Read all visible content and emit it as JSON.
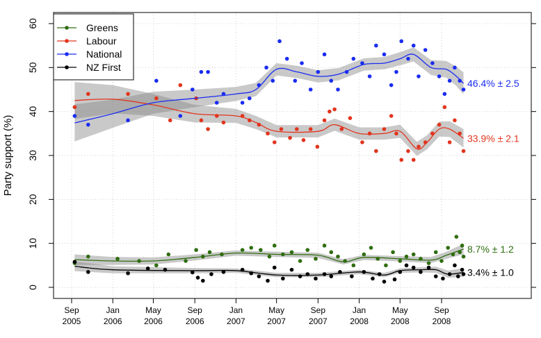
{
  "chart_data": {
    "type": "scatter",
    "title": "",
    "xlabel": "",
    "ylabel": "Party support (%)",
    "ylim": [
      0,
      60
    ],
    "yticks": [
      "0",
      "10",
      "20",
      "30",
      "40",
      "50",
      "60"
    ],
    "xticks": [
      {
        "date": "2005-09-01",
        "month": "Sep",
        "year": "2005"
      },
      {
        "date": "2006-01-01",
        "month": "Jan",
        "year": "2006"
      },
      {
        "date": "2006-05-01",
        "month": "May",
        "year": "2006"
      },
      {
        "date": "2006-09-01",
        "month": "Sep",
        "year": "2006"
      },
      {
        "date": "2007-01-01",
        "month": "Jan",
        "year": "2007"
      },
      {
        "date": "2007-05-01",
        "month": "May",
        "year": "2007"
      },
      {
        "date": "2007-09-01",
        "month": "Sep",
        "year": "2007"
      },
      {
        "date": "2008-01-01",
        "month": "Jan",
        "year": "2008"
      },
      {
        "date": "2008-05-01",
        "month": "May",
        "year": "2008"
      },
      {
        "date": "2008-09-01",
        "month": "Sep",
        "year": "2008"
      }
    ],
    "grid": true,
    "legend_position": "top-left",
    "series": [
      {
        "name": "Greens",
        "color": "#2f6d10",
        "end_label": "8.7% ± 1.2",
        "trend": [
          [
            "2005-09-10",
            6.3,
            1.2
          ],
          [
            "2006-01-01",
            6.0,
            0.9
          ],
          [
            "2006-05-01",
            6.0,
            0.8
          ],
          [
            "2006-09-01",
            6.8,
            0.7
          ],
          [
            "2007-01-01",
            7.8,
            0.6
          ],
          [
            "2007-05-01",
            7.5,
            0.6
          ],
          [
            "2007-09-01",
            7.3,
            0.6
          ],
          [
            "2007-11-15",
            5.8,
            0.6
          ],
          [
            "2008-01-15",
            6.8,
            0.6
          ],
          [
            "2008-05-01",
            6.5,
            0.6
          ],
          [
            "2008-08-01",
            6.2,
            0.7
          ],
          [
            "2008-09-15",
            7.3,
            0.8
          ],
          [
            "2008-11-05",
            8.7,
            1.2
          ]
        ],
        "points": [
          [
            "2005-09-10",
            5.5
          ],
          [
            "2005-10-20",
            7
          ],
          [
            "2006-01-15",
            6.5
          ],
          [
            "2006-03-20",
            6
          ],
          [
            "2006-05-10",
            5
          ],
          [
            "2006-06-15",
            7.5
          ],
          [
            "2006-08-05",
            6
          ],
          [
            "2006-09-05",
            8.5
          ],
          [
            "2006-09-25",
            7
          ],
          [
            "2006-10-15",
            8
          ],
          [
            "2006-11-20",
            7.5
          ],
          [
            "2007-01-20",
            8.5
          ],
          [
            "2007-02-15",
            9
          ],
          [
            "2007-03-15",
            8.5
          ],
          [
            "2007-04-10",
            7
          ],
          [
            "2007-04-25",
            9.5
          ],
          [
            "2007-05-20",
            7.5
          ],
          [
            "2007-06-15",
            8
          ],
          [
            "2007-07-10",
            6
          ],
          [
            "2007-08-01",
            8.5
          ],
          [
            "2007-08-25",
            6.5
          ],
          [
            "2007-09-20",
            9.5
          ],
          [
            "2007-10-10",
            8
          ],
          [
            "2007-10-30",
            7
          ],
          [
            "2007-11-20",
            6
          ],
          [
            "2007-12-15",
            5
          ],
          [
            "2008-01-15",
            7.5
          ],
          [
            "2008-02-05",
            9
          ],
          [
            "2008-02-25",
            6.5
          ],
          [
            "2008-03-20",
            5
          ],
          [
            "2008-04-10",
            8
          ],
          [
            "2008-05-01",
            6
          ],
          [
            "2008-05-20",
            7
          ],
          [
            "2008-06-10",
            7.5
          ],
          [
            "2008-07-01",
            6.5
          ],
          [
            "2008-07-25",
            5.5
          ],
          [
            "2008-08-15",
            8
          ],
          [
            "2008-09-01",
            6
          ],
          [
            "2008-09-20",
            9
          ],
          [
            "2008-10-05",
            7.5
          ],
          [
            "2008-10-15",
            11.5
          ],
          [
            "2008-10-25",
            8
          ],
          [
            "2008-11-01",
            9.5
          ],
          [
            "2008-11-05",
            7
          ]
        ]
      },
      {
        "name": "Labour",
        "color": "#e2341d",
        "end_label": "33.9% ± 2.1",
        "trend": [
          [
            "2005-09-10",
            42.5,
            4.2
          ],
          [
            "2006-01-01",
            42.8,
            3.2
          ],
          [
            "2006-05-01",
            41.5,
            2.5
          ],
          [
            "2006-09-01",
            39.5,
            2.0
          ],
          [
            "2007-01-01",
            39.0,
            1.6
          ],
          [
            "2007-03-01",
            37.5,
            1.5
          ],
          [
            "2007-05-01",
            35.5,
            1.4
          ],
          [
            "2007-09-01",
            35.5,
            1.4
          ],
          [
            "2007-10-20",
            37.0,
            1.4
          ],
          [
            "2008-01-01",
            35.0,
            1.4
          ],
          [
            "2008-03-15",
            35.0,
            1.4
          ],
          [
            "2008-05-01",
            35.5,
            1.5
          ],
          [
            "2008-06-20",
            31.5,
            1.6
          ],
          [
            "2008-07-20",
            33.0,
            1.6
          ],
          [
            "2008-08-25",
            36.0,
            1.7
          ],
          [
            "2008-09-25",
            36.0,
            1.8
          ],
          [
            "2008-11-05",
            33.9,
            2.1
          ]
        ],
        "points": [
          [
            "2005-09-10",
            41
          ],
          [
            "2005-10-20",
            44
          ],
          [
            "2006-02-15",
            44
          ],
          [
            "2006-05-10",
            43
          ],
          [
            "2006-06-20",
            38
          ],
          [
            "2006-07-20",
            46
          ],
          [
            "2006-09-05",
            43
          ],
          [
            "2006-09-20",
            38
          ],
          [
            "2006-10-10",
            36
          ],
          [
            "2006-11-05",
            39
          ],
          [
            "2006-11-25",
            37.5
          ],
          [
            "2007-01-20",
            39
          ],
          [
            "2007-02-10",
            38
          ],
          [
            "2007-03-10",
            37
          ],
          [
            "2007-04-05",
            35
          ],
          [
            "2007-04-25",
            33
          ],
          [
            "2007-05-15",
            36
          ],
          [
            "2007-06-10",
            34
          ],
          [
            "2007-06-30",
            36
          ],
          [
            "2007-07-20",
            33.5
          ],
          [
            "2007-08-10",
            36
          ],
          [
            "2007-08-30",
            32
          ],
          [
            "2007-09-20",
            38
          ],
          [
            "2007-10-05",
            40
          ],
          [
            "2007-10-20",
            40.5
          ],
          [
            "2007-11-10",
            36
          ],
          [
            "2007-12-05",
            38.5
          ],
          [
            "2008-01-10",
            33
          ],
          [
            "2008-02-01",
            35
          ],
          [
            "2008-02-20",
            31
          ],
          [
            "2008-03-15",
            36
          ],
          [
            "2008-04-05",
            39
          ],
          [
            "2008-04-20",
            35
          ],
          [
            "2008-05-05",
            29
          ],
          [
            "2008-05-25",
            31
          ],
          [
            "2008-06-10",
            29
          ],
          [
            "2008-06-25",
            32
          ],
          [
            "2008-07-15",
            33
          ],
          [
            "2008-08-05",
            35
          ],
          [
            "2008-08-25",
            37
          ],
          [
            "2008-09-10",
            41
          ],
          [
            "2008-09-25",
            33
          ],
          [
            "2008-10-10",
            38
          ],
          [
            "2008-10-25",
            35
          ],
          [
            "2008-11-05",
            31
          ]
        ]
      },
      {
        "name": "National",
        "color": "#1a2cf2",
        "end_label": "46.4% ± 2.5",
        "trend": [
          [
            "2005-09-10",
            37.4,
            4.2
          ],
          [
            "2006-01-01",
            39.5,
            3.2
          ],
          [
            "2006-05-01",
            42.0,
            2.5
          ],
          [
            "2006-09-01",
            43.0,
            2.0
          ],
          [
            "2007-01-01",
            44.0,
            1.6
          ],
          [
            "2007-03-01",
            45.0,
            1.5
          ],
          [
            "2007-05-01",
            49.6,
            1.4
          ],
          [
            "2007-07-01",
            49.0,
            1.4
          ],
          [
            "2007-09-01",
            48.0,
            1.4
          ],
          [
            "2007-11-01",
            48.5,
            1.4
          ],
          [
            "2008-01-15",
            50.7,
            1.4
          ],
          [
            "2008-03-15",
            51.0,
            1.4
          ],
          [
            "2008-05-01",
            52.0,
            1.5
          ],
          [
            "2008-06-10",
            53.0,
            1.6
          ],
          [
            "2008-08-01",
            50.0,
            1.7
          ],
          [
            "2008-09-15",
            49.6,
            1.9
          ],
          [
            "2008-10-15",
            48.0,
            2.2
          ],
          [
            "2008-11-05",
            46.4,
            2.5
          ]
        ],
        "points": [
          [
            "2005-09-10",
            39
          ],
          [
            "2005-10-20",
            37
          ],
          [
            "2006-02-15",
            38
          ],
          [
            "2006-05-10",
            47
          ],
          [
            "2006-07-20",
            39
          ],
          [
            "2006-08-25",
            45
          ],
          [
            "2006-09-20",
            49
          ],
          [
            "2006-10-10",
            49
          ],
          [
            "2006-11-05",
            42
          ],
          [
            "2006-11-25",
            44
          ],
          [
            "2007-01-20",
            42
          ],
          [
            "2007-02-10",
            43
          ],
          [
            "2007-03-10",
            46
          ],
          [
            "2007-04-01",
            50
          ],
          [
            "2007-04-20",
            47
          ],
          [
            "2007-05-10",
            56
          ],
          [
            "2007-06-01",
            52
          ],
          [
            "2007-06-25",
            47
          ],
          [
            "2007-07-15",
            51
          ],
          [
            "2007-08-10",
            45
          ],
          [
            "2007-09-01",
            49
          ],
          [
            "2007-09-20",
            53
          ],
          [
            "2007-10-10",
            47
          ],
          [
            "2007-10-30",
            45
          ],
          [
            "2007-11-25",
            49
          ],
          [
            "2007-12-15",
            52
          ],
          [
            "2008-01-10",
            51
          ],
          [
            "2008-02-01",
            48
          ],
          [
            "2008-02-20",
            55
          ],
          [
            "2008-03-15",
            53
          ],
          [
            "2008-04-05",
            46
          ],
          [
            "2008-04-20",
            49
          ],
          [
            "2008-05-05",
            56
          ],
          [
            "2008-05-25",
            52
          ],
          [
            "2008-06-10",
            55
          ],
          [
            "2008-06-25",
            48
          ],
          [
            "2008-07-15",
            54
          ],
          [
            "2008-08-05",
            51
          ],
          [
            "2008-08-25",
            48
          ],
          [
            "2008-09-10",
            44
          ],
          [
            "2008-09-25",
            47
          ],
          [
            "2008-10-10",
            50
          ],
          [
            "2008-10-25",
            47
          ],
          [
            "2008-11-05",
            45
          ]
        ]
      },
      {
        "name": "NZ First",
        "color": "#000000",
        "end_label": "3.4% ± 1.0",
        "trend": [
          [
            "2005-09-10",
            4.8,
            1.1
          ],
          [
            "2006-01-01",
            4.0,
            0.8
          ],
          [
            "2006-09-01",
            3.8,
            0.6
          ],
          [
            "2007-01-01",
            3.8,
            0.5
          ],
          [
            "2007-05-01",
            2.8,
            0.5
          ],
          [
            "2007-09-01",
            2.8,
            0.5
          ],
          [
            "2008-01-01",
            3.5,
            0.5
          ],
          [
            "2008-03-15",
            2.8,
            0.5
          ],
          [
            "2008-05-01",
            3.8,
            0.5
          ],
          [
            "2008-07-01",
            4.0,
            0.6
          ],
          [
            "2008-08-15",
            4.0,
            0.7
          ],
          [
            "2008-09-20",
            3.0,
            0.8
          ],
          [
            "2008-11-05",
            3.4,
            1.0
          ]
        ],
        "points": [
          [
            "2005-09-10",
            5.8
          ],
          [
            "2005-10-20",
            3.5
          ],
          [
            "2006-02-15",
            3.2
          ],
          [
            "2006-04-15",
            4.3
          ],
          [
            "2006-06-05",
            4
          ],
          [
            "2006-08-25",
            3.4
          ],
          [
            "2006-09-10",
            2.2
          ],
          [
            "2006-09-25",
            1.5
          ],
          [
            "2006-10-20",
            3
          ],
          [
            "2006-11-25",
            3.5
          ],
          [
            "2007-01-20",
            4
          ],
          [
            "2007-02-15",
            3.2
          ],
          [
            "2007-03-10",
            2.5
          ],
          [
            "2007-04-05",
            1.5
          ],
          [
            "2007-04-25",
            4.5
          ],
          [
            "2007-05-20",
            2
          ],
          [
            "2007-06-15",
            4
          ],
          [
            "2007-07-10",
            2.5
          ],
          [
            "2007-08-01",
            3
          ],
          [
            "2007-08-25",
            2
          ],
          [
            "2007-09-20",
            3
          ],
          [
            "2007-10-10",
            2.5
          ],
          [
            "2007-11-05",
            3.5
          ],
          [
            "2007-12-10",
            2.5
          ],
          [
            "2008-01-15",
            3.5
          ],
          [
            "2008-02-10",
            2
          ],
          [
            "2008-03-01",
            3
          ],
          [
            "2008-03-15",
            1.3
          ],
          [
            "2008-04-15",
            1.8
          ],
          [
            "2008-05-01",
            3.5
          ],
          [
            "2008-05-20",
            5
          ],
          [
            "2008-06-10",
            4.5
          ],
          [
            "2008-07-01",
            3.5
          ],
          [
            "2008-07-25",
            4.5
          ],
          [
            "2008-08-15",
            2.5
          ],
          [
            "2008-09-05",
            2
          ],
          [
            "2008-09-25",
            3
          ],
          [
            "2008-10-10",
            5
          ],
          [
            "2008-10-20",
            2.5
          ],
          [
            "2008-11-01",
            4
          ],
          [
            "2008-11-05",
            3
          ]
        ]
      }
    ]
  }
}
